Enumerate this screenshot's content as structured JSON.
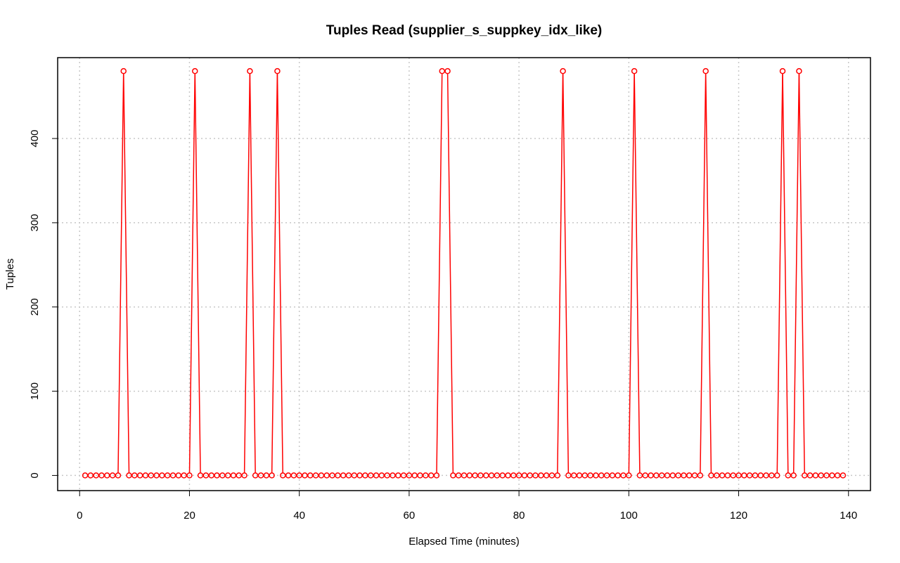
{
  "chart_data": {
    "type": "line",
    "title": "Tuples Read (supplier_s_suppkey_idx_like)",
    "xlabel": "Elapsed Time (minutes)",
    "ylabel": "Tuples",
    "xlim": [
      -4,
      144
    ],
    "ylim": [
      -18,
      496
    ],
    "xticks": [
      0,
      20,
      40,
      60,
      80,
      100,
      120,
      140
    ],
    "yticks": [
      0,
      100,
      200,
      300,
      400
    ],
    "grid": true,
    "color": "#ff0000",
    "series": [
      {
        "x": [
          1,
          2,
          3,
          4,
          5,
          6,
          7,
          8,
          9,
          10,
          11,
          12,
          13,
          14,
          15,
          16,
          17,
          18,
          19,
          20,
          21,
          22,
          23,
          24,
          25,
          26,
          27,
          28,
          29,
          30,
          31,
          32,
          33,
          34,
          35,
          36,
          37,
          38,
          39,
          40,
          41,
          42,
          43,
          44,
          45,
          46,
          47,
          48,
          49,
          50,
          51,
          52,
          53,
          54,
          55,
          56,
          57,
          58,
          59,
          60,
          61,
          62,
          63,
          64,
          65,
          66,
          67,
          68,
          69,
          70,
          71,
          72,
          73,
          74,
          75,
          76,
          77,
          78,
          79,
          80,
          81,
          82,
          83,
          84,
          85,
          86,
          87,
          88,
          89,
          90,
          91,
          92,
          93,
          94,
          95,
          96,
          97,
          98,
          99,
          100,
          101,
          102,
          103,
          104,
          105,
          106,
          107,
          108,
          109,
          110,
          111,
          112,
          113,
          114,
          115,
          116,
          117,
          118,
          119,
          120,
          121,
          122,
          123,
          124,
          125,
          126,
          127,
          128,
          129,
          130,
          131,
          132,
          133,
          134,
          135,
          136,
          137,
          138,
          139
        ],
        "y": [
          0,
          0,
          0,
          0,
          0,
          0,
          0,
          480,
          0,
          0,
          0,
          0,
          0,
          0,
          0,
          0,
          0,
          0,
          0,
          0,
          480,
          0,
          0,
          0,
          0,
          0,
          0,
          0,
          0,
          0,
          480,
          0,
          0,
          0,
          0,
          480,
          0,
          0,
          0,
          0,
          0,
          0,
          0,
          0,
          0,
          0,
          0,
          0,
          0,
          0,
          0,
          0,
          0,
          0,
          0,
          0,
          0,
          0,
          0,
          0,
          0,
          0,
          0,
          0,
          0,
          480,
          480,
          0,
          0,
          0,
          0,
          0,
          0,
          0,
          0,
          0,
          0,
          0,
          0,
          0,
          0,
          0,
          0,
          0,
          0,
          0,
          0,
          480,
          0,
          0,
          0,
          0,
          0,
          0,
          0,
          0,
          0,
          0,
          0,
          0,
          480,
          0,
          0,
          0,
          0,
          0,
          0,
          0,
          0,
          0,
          0,
          0,
          0,
          480,
          0,
          0,
          0,
          0,
          0,
          0,
          0,
          0,
          0,
          0,
          0,
          0,
          0,
          480,
          0,
          0,
          480,
          0,
          0,
          0,
          0,
          0,
          0,
          0,
          0
        ]
      }
    ]
  }
}
